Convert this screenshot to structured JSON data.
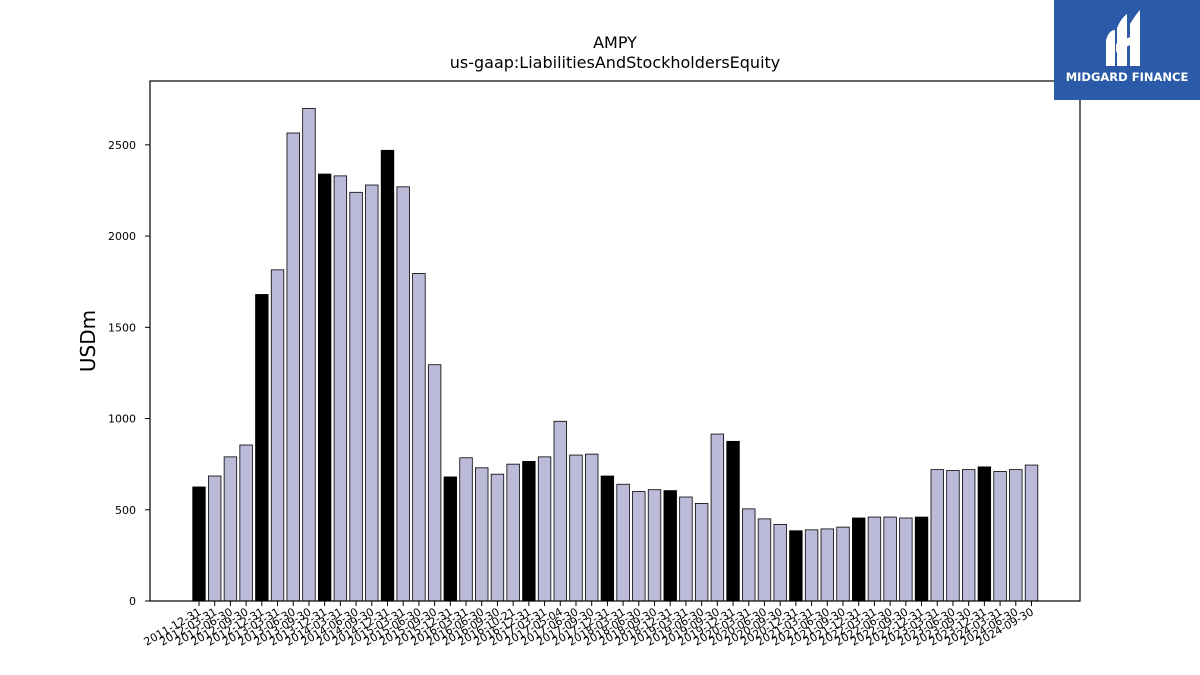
{
  "brand": {
    "name": "MIDGARD FINANCE",
    "color": "#2b5aa8"
  },
  "chart_data": {
    "type": "bar",
    "title": "AMPY",
    "subtitle": "us-gaap:LiabilitiesAndStockholdersEquity",
    "xlabel": "",
    "ylabel": "USDm",
    "ylim": [
      0,
      2850
    ],
    "yticks": [
      0,
      500,
      1000,
      1500,
      2000,
      2500
    ],
    "grid": false,
    "colors": {
      "quarter": "#bcbad9",
      "year_end": "#000000",
      "edge": "#000000"
    },
    "categories": [
      "2011-12-31",
      "2012-03-31",
      "2012-06-30",
      "2012-09-30",
      "2012-12-31",
      "2013-03-31",
      "2013-06-30",
      "2013-09-30",
      "2013-12-31",
      "2014-03-31",
      "2014-06-30",
      "2014-09-30",
      "2014-12-31",
      "2015-03-31",
      "2015-06-30",
      "2015-09-30",
      "2015-12-31",
      "2016-03-31",
      "2016-06-30",
      "2016-09-30",
      "2016-10-21",
      "2016-12-31",
      "2017-03-31",
      "2017-05-04",
      "2017-06-30",
      "2017-09-30",
      "2017-12-31",
      "2018-03-31",
      "2018-06-30",
      "2018-09-30",
      "2018-12-31",
      "2019-03-31",
      "2019-06-30",
      "2019-09-30",
      "2019-12-31",
      "2020-03-31",
      "2020-06-30",
      "2020-09-30",
      "2020-12-31",
      "2021-03-31",
      "2021-06-30",
      "2021-09-30",
      "2021-12-31",
      "2022-03-31",
      "2022-06-30",
      "2022-09-30",
      "2022-12-31",
      "2023-03-31",
      "2023-06-30",
      "2023-09-30",
      "2023-12-31",
      "2024-03-31",
      "2024-06-30",
      "2024-09-30"
    ],
    "values": [
      625,
      685,
      790,
      855,
      1680,
      1815,
      2565,
      2700,
      2340,
      2330,
      2240,
      2280,
      2470,
      2270,
      1795,
      1295,
      680,
      785,
      730,
      695,
      750,
      765,
      790,
      985,
      800,
      805,
      685,
      640,
      600,
      610,
      605,
      570,
      535,
      915,
      875,
      505,
      450,
      420,
      385,
      390,
      395,
      405,
      455,
      460,
      460,
      455,
      460,
      720,
      715,
      720,
      735,
      710,
      720,
      745
    ],
    "highlight": [
      true,
      false,
      false,
      false,
      true,
      false,
      false,
      false,
      true,
      false,
      false,
      false,
      true,
      false,
      false,
      false,
      true,
      false,
      false,
      false,
      false,
      true,
      false,
      false,
      false,
      false,
      true,
      false,
      false,
      false,
      true,
      false,
      false,
      false,
      true,
      false,
      false,
      false,
      true,
      false,
      false,
      false,
      true,
      false,
      false,
      false,
      true,
      false,
      false,
      false,
      true,
      false,
      false,
      false
    ]
  }
}
